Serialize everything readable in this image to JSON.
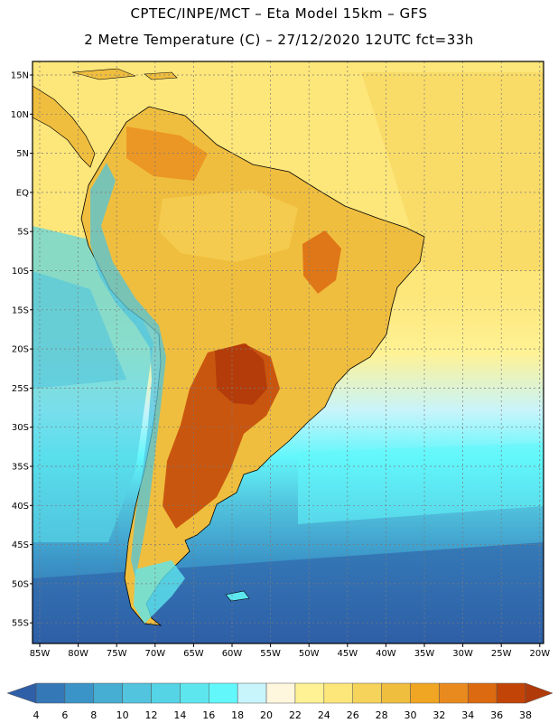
{
  "header": {
    "line1": "CPTEC/INPE/MCT –  Eta Model 15km – GFS",
    "line2": "2 Metre Temperature (C) – 27/12/2020 12UTC fct=33h"
  },
  "lat_labels": [
    "15N",
    "10N",
    "5N",
    "EQ",
    "5S",
    "10S",
    "15S",
    "20S",
    "25S",
    "30S",
    "35S",
    "40S",
    "45S",
    "50S",
    "55S"
  ],
  "lon_labels": [
    "85W",
    "80W",
    "75W",
    "70W",
    "65W",
    "60W",
    "55W",
    "50W",
    "45W",
    "40W",
    "35W",
    "30W",
    "25W",
    "20W"
  ],
  "colorbar": {
    "labels": [
      "4",
      "6",
      "8",
      "10",
      "12",
      "14",
      "16",
      "18",
      "20",
      "22",
      "24",
      "26",
      "28",
      "30",
      "32",
      "34",
      "36",
      "38"
    ],
    "colors": [
      "#2f5fa6",
      "#3478b8",
      "#3b94c7",
      "#45aed2",
      "#52c4de",
      "#55d4e6",
      "#5ee6ef",
      "#62f7fb",
      "#c8f4fb",
      "#fff6de",
      "#fff294",
      "#fde67a",
      "#f6d35a",
      "#f0be3e",
      "#f0a622",
      "#e98a1e",
      "#dc6a10",
      "#c24407",
      "#b13a0a"
    ]
  }
}
